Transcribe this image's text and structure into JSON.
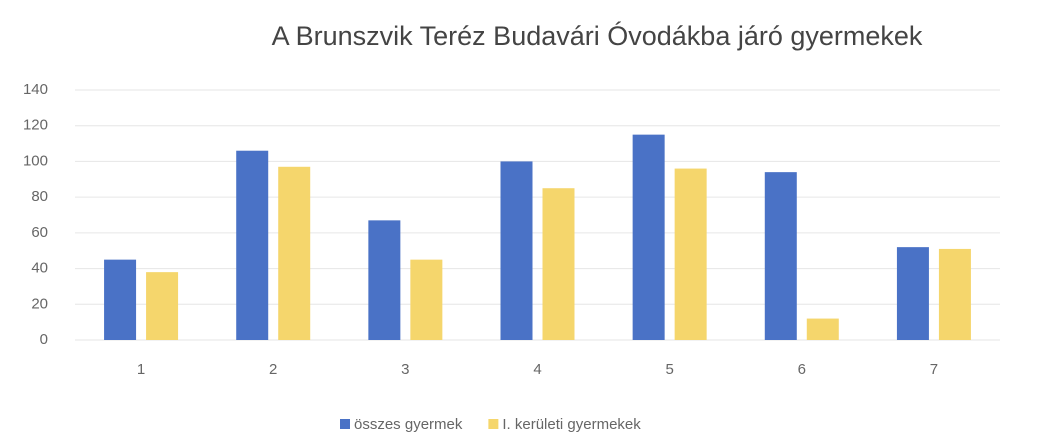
{
  "chart_data": {
    "type": "bar",
    "title": "A Brunszvik Teréz Budavári Óvodákba járó gyermekek",
    "categories": [
      "1",
      "2",
      "3",
      "4",
      "5",
      "6",
      "7"
    ],
    "series": [
      {
        "name": "összes gyermek",
        "color": "#4a72c6",
        "values": [
          45,
          106,
          67,
          100,
          115,
          94,
          52
        ]
      },
      {
        "name": "I. kerületi gyermekek",
        "color": "#f5d66c",
        "values": [
          38,
          97,
          45,
          85,
          96,
          12,
          51
        ]
      }
    ],
    "ylim": [
      0,
      140
    ],
    "yticks": [
      0,
      20,
      40,
      60,
      80,
      100,
      120,
      140
    ],
    "grid": true,
    "legend": "bottom"
  }
}
